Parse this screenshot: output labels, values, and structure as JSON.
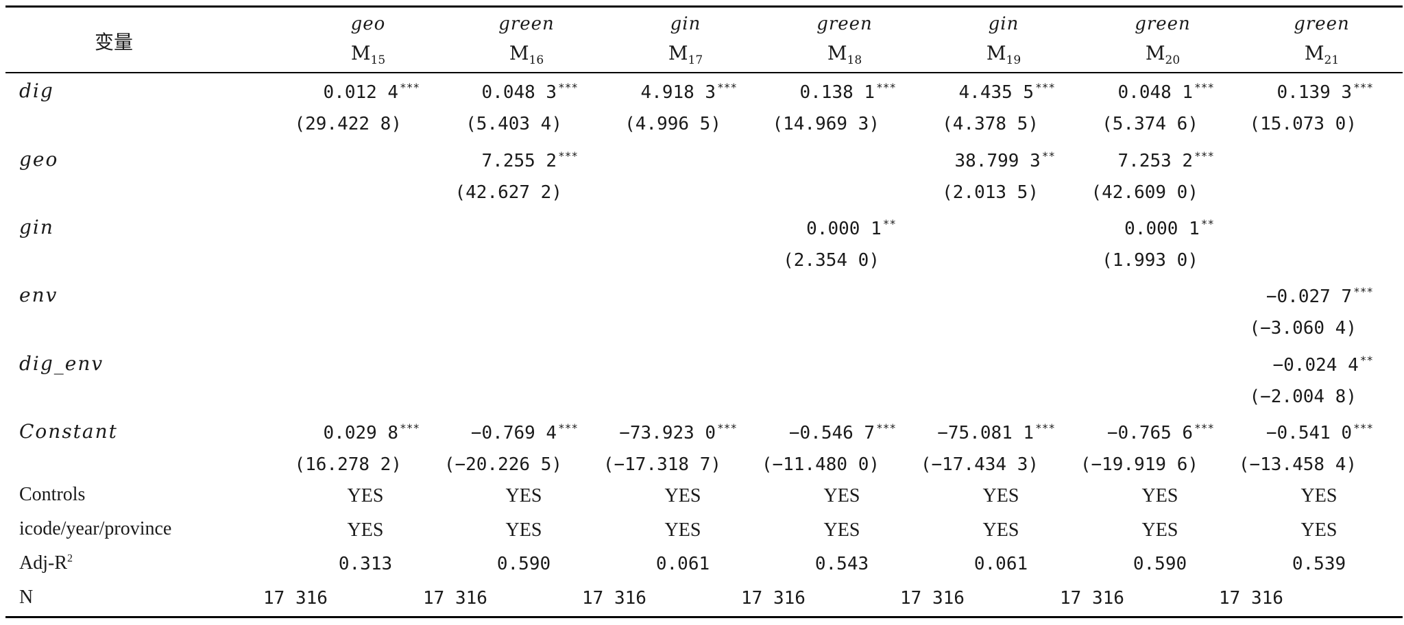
{
  "header": {
    "label": "变量",
    "dep_vars": [
      "geo",
      "green",
      "gin",
      "green",
      "gin",
      "green",
      "green"
    ],
    "models": [
      {
        "base": "M",
        "sub": "15"
      },
      {
        "base": "M",
        "sub": "16"
      },
      {
        "base": "M",
        "sub": "17"
      },
      {
        "base": "M",
        "sub": "18"
      },
      {
        "base": "M",
        "sub": "19"
      },
      {
        "base": "M",
        "sub": "20"
      },
      {
        "base": "M",
        "sub": "21"
      }
    ]
  },
  "rows": {
    "dig": {
      "label": "dig",
      "coef": [
        "0.012 4",
        "0.048 3",
        "4.918 3",
        "0.138 1",
        "4.435 5",
        "0.048 1",
        "0.139 3"
      ],
      "stars": [
        "***",
        "***",
        "***",
        "***",
        "***",
        "***",
        "***"
      ],
      "t": [
        "(29.422 8)",
        "(5.403 4)",
        "(4.996 5)",
        "(14.969 3)",
        "(4.378 5)",
        "(5.374 6)",
        "(15.073 0)"
      ]
    },
    "geo": {
      "label": "geo",
      "coef": [
        "",
        "7.255 2",
        "",
        "",
        "38.799 3",
        "7.253 2",
        ""
      ],
      "stars": [
        "",
        "***",
        "",
        "",
        "**",
        "***",
        ""
      ],
      "t": [
        "",
        "(42.627 2)",
        "",
        "",
        "(2.013 5)",
        "(42.609 0)",
        ""
      ]
    },
    "gin": {
      "label": "gin",
      "coef": [
        "",
        "",
        "",
        "0.000 1",
        "",
        "0.000 1",
        ""
      ],
      "stars": [
        "",
        "",
        "",
        "**",
        "",
        "**",
        ""
      ],
      "t": [
        "",
        "",
        "",
        "(2.354 0)",
        "",
        "(1.993 0)",
        ""
      ]
    },
    "env": {
      "label": "env",
      "coef": [
        "",
        "",
        "",
        "",
        "",
        "",
        "−0.027 7"
      ],
      "stars": [
        "",
        "",
        "",
        "",
        "",
        "",
        "***"
      ],
      "t": [
        "",
        "",
        "",
        "",
        "",
        "",
        "(−3.060 4)"
      ]
    },
    "dig_env": {
      "label": "dig_env",
      "coef": [
        "",
        "",
        "",
        "",
        "",
        "",
        "−0.024 4"
      ],
      "stars": [
        "",
        "",
        "",
        "",
        "",
        "",
        "**"
      ],
      "t": [
        "",
        "",
        "",
        "",
        "",
        "",
        "(−2.004 8)"
      ]
    },
    "constant": {
      "label": "Constant",
      "coef": [
        "0.029 8",
        "−0.769 4",
        "−73.923 0",
        "−0.546 7",
        "−75.081 1",
        "−0.765 6",
        "−0.541 0"
      ],
      "stars": [
        "***",
        "***",
        "***",
        "***",
        "***",
        "***",
        "***"
      ],
      "t": [
        "(16.278 2)",
        "(−20.226 5)",
        "(−17.318 7)",
        "(−11.480 0)",
        "(−17.434 3)",
        "(−19.919 6)",
        "(−13.458 4)"
      ]
    }
  },
  "footer": {
    "controls": {
      "label": "Controls",
      "values": [
        "YES",
        "YES",
        "YES",
        "YES",
        "YES",
        "YES",
        "YES"
      ]
    },
    "fe": {
      "label": "icode/year/province",
      "values": [
        "YES",
        "YES",
        "YES",
        "YES",
        "YES",
        "YES",
        "YES"
      ]
    },
    "adjr2": {
      "label": "Adj-R",
      "sup": "2",
      "values": [
        "0.313",
        "0.590",
        "0.061",
        "0.543",
        "0.061",
        "0.590",
        "0.539"
      ]
    },
    "n": {
      "label": "N",
      "values": [
        "17 316",
        "17 316",
        "17 316",
        "17 316",
        "17 316",
        "17 316",
        "17 316"
      ]
    }
  }
}
